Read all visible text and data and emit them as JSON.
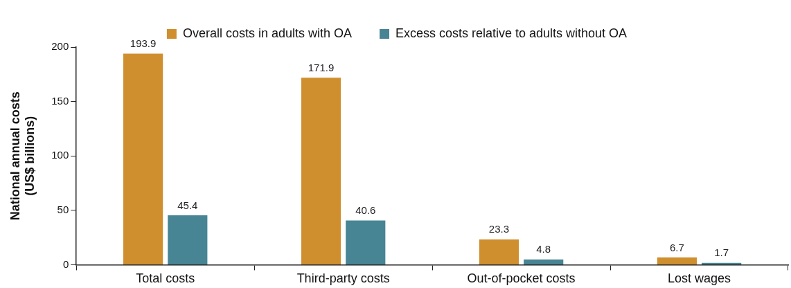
{
  "chart_data": {
    "type": "bar",
    "ylabel": "National annual costs\n(US$ billions)",
    "categories": [
      "Total costs",
      "Third-party costs",
      "Out-of-pocket costs",
      "Lost wages"
    ],
    "series": [
      {
        "name": "Overall costs in adults with OA",
        "color": "#d08f2e",
        "values": [
          193.9,
          171.9,
          23.3,
          6.7
        ]
      },
      {
        "name": "Excess costs relative to adults without OA",
        "color": "#478594",
        "values": [
          45.4,
          40.6,
          4.8,
          1.7
        ]
      }
    ],
    "ylim": [
      0,
      200
    ],
    "yticks": [
      0,
      50,
      100,
      150,
      200
    ],
    "grid": false,
    "legend": "top",
    "data_labels": true
  }
}
